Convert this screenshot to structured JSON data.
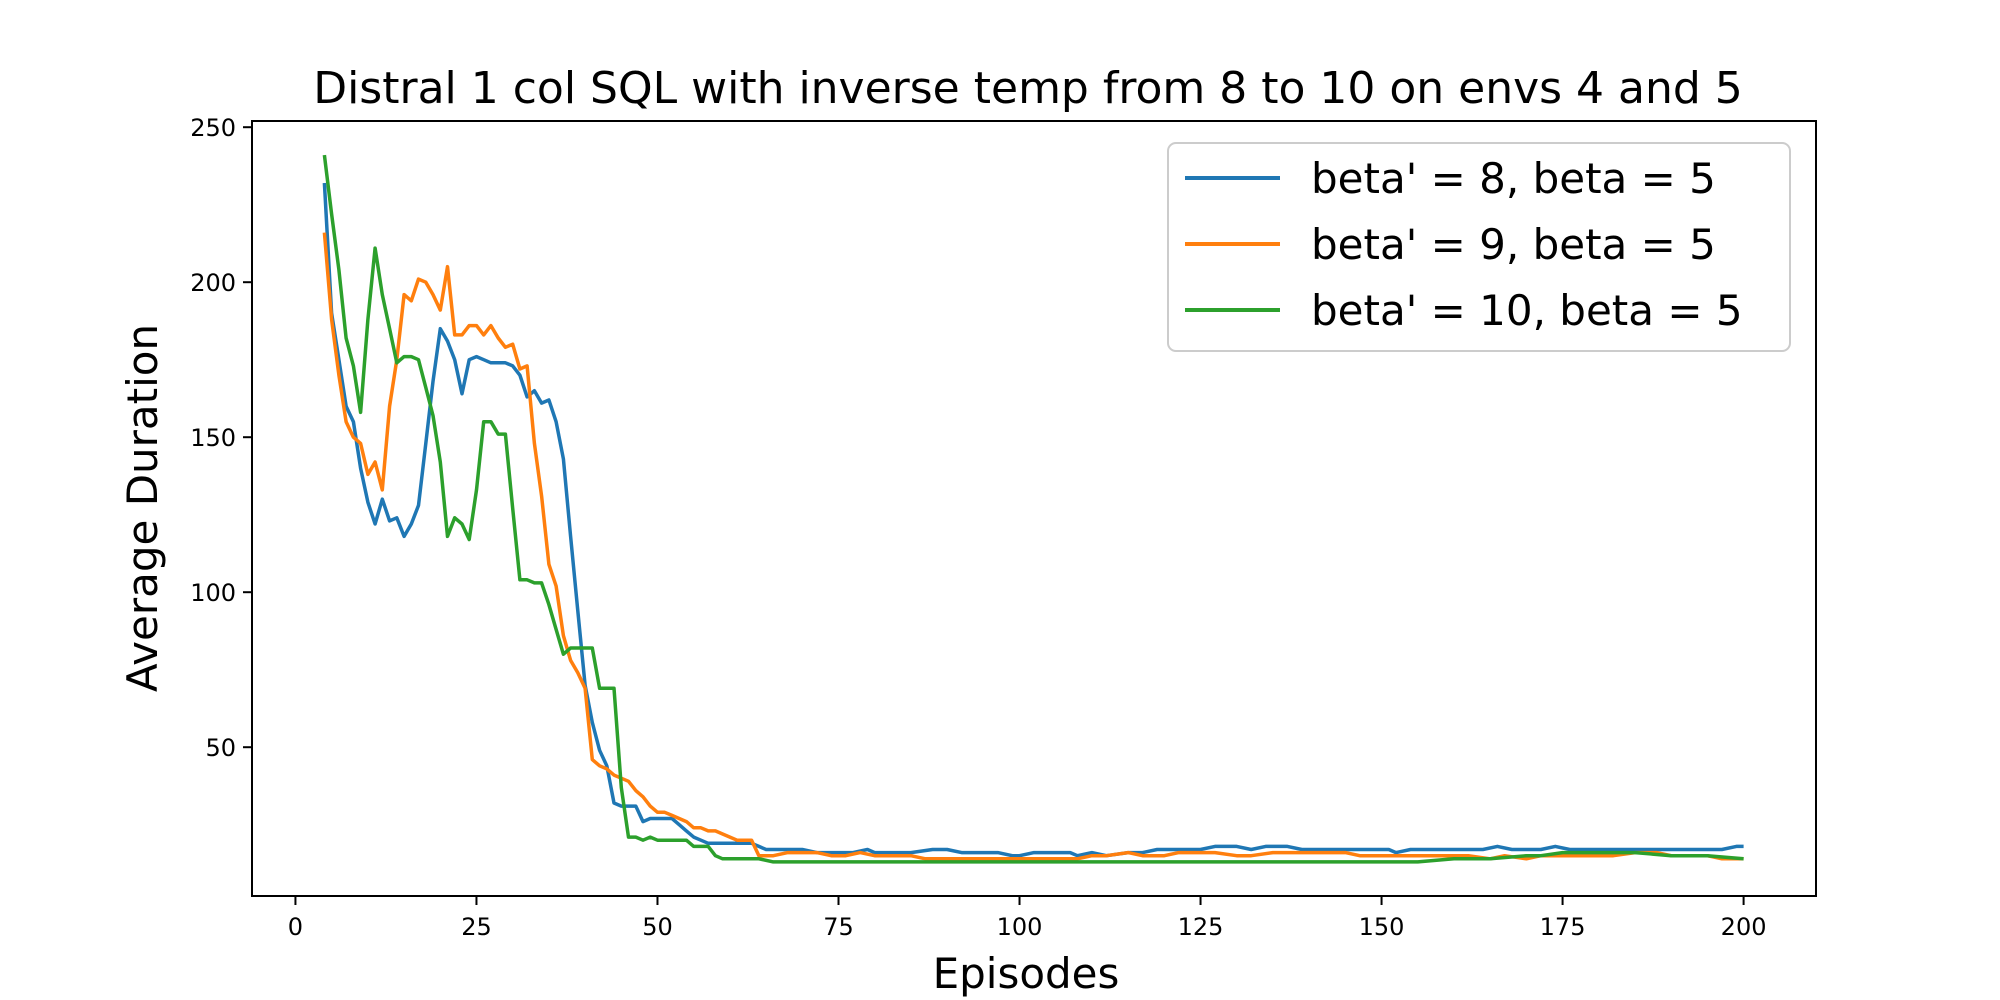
{
  "chart_data": {
    "type": "line",
    "title": "Distral 1 col SQL with inverse temp from 8 to 10 on envs 4 and 5",
    "xlabel": "Episodes",
    "ylabel": "Average Duration",
    "xlim": [
      -6,
      210
    ],
    "ylim": [
      2,
      252
    ],
    "xticks": [
      0,
      25,
      50,
      75,
      100,
      125,
      150,
      175,
      200
    ],
    "yticks": [
      50,
      100,
      150,
      200,
      250
    ],
    "grid": false,
    "legend_position": "top-right",
    "series": [
      {
        "name": "beta' = 8, beta = 5",
        "color": "#1f77b4",
        "points": [
          [
            4,
            232
          ],
          [
            5,
            190
          ],
          [
            6,
            175
          ],
          [
            7,
            160
          ],
          [
            8,
            155
          ],
          [
            9,
            140
          ],
          [
            10,
            129
          ],
          [
            11,
            122
          ],
          [
            12,
            130
          ],
          [
            13,
            123
          ],
          [
            14,
            124
          ],
          [
            15,
            118
          ],
          [
            16,
            122
          ],
          [
            17,
            128
          ],
          [
            18,
            148
          ],
          [
            19,
            168
          ],
          [
            20,
            185
          ],
          [
            21,
            181
          ],
          [
            22,
            175
          ],
          [
            23,
            164
          ],
          [
            24,
            175
          ],
          [
            25,
            176
          ],
          [
            26,
            175
          ],
          [
            27,
            174
          ],
          [
            28,
            174
          ],
          [
            29,
            174
          ],
          [
            30,
            173
          ],
          [
            31,
            170
          ],
          [
            32,
            163
          ],
          [
            33,
            165
          ],
          [
            34,
            161
          ],
          [
            35,
            162
          ],
          [
            36,
            155
          ],
          [
            37,
            143
          ],
          [
            38,
            118
          ],
          [
            39,
            94
          ],
          [
            40,
            70
          ],
          [
            41,
            58
          ],
          [
            42,
            49
          ],
          [
            43,
            44
          ],
          [
            44,
            32
          ],
          [
            45,
            31
          ],
          [
            46,
            31
          ],
          [
            47,
            31
          ],
          [
            48,
            26
          ],
          [
            49,
            27
          ],
          [
            50,
            27
          ],
          [
            51,
            27
          ],
          [
            52,
            27
          ],
          [
            53,
            25
          ],
          [
            54,
            23
          ],
          [
            55,
            21
          ],
          [
            56,
            20
          ],
          [
            57,
            19
          ],
          [
            58,
            19
          ],
          [
            59,
            19
          ],
          [
            60,
            19
          ],
          [
            61,
            19
          ],
          [
            62,
            19
          ],
          [
            63,
            19
          ],
          [
            64,
            18
          ],
          [
            65,
            17
          ],
          [
            66,
            17
          ],
          [
            67,
            17
          ],
          [
            68,
            17
          ],
          [
            70,
            17
          ],
          [
            72,
            16
          ],
          [
            75,
            16
          ],
          [
            77,
            16
          ],
          [
            79,
            17
          ],
          [
            80,
            16
          ],
          [
            82,
            16
          ],
          [
            85,
            16
          ],
          [
            88,
            17
          ],
          [
            90,
            17
          ],
          [
            92,
            16
          ],
          [
            95,
            16
          ],
          [
            97,
            16
          ],
          [
            99,
            15
          ],
          [
            100,
            15
          ],
          [
            102,
            16
          ],
          [
            105,
            16
          ],
          [
            107,
            16
          ],
          [
            108,
            15
          ],
          [
            110,
            16
          ],
          [
            112,
            15
          ],
          [
            115,
            16
          ],
          [
            117,
            16
          ],
          [
            119,
            17
          ],
          [
            120,
            17
          ],
          [
            122,
            17
          ],
          [
            125,
            17
          ],
          [
            127,
            18
          ],
          [
            129,
            18
          ],
          [
            130,
            18
          ],
          [
            132,
            17
          ],
          [
            134,
            18
          ],
          [
            136,
            18
          ],
          [
            137,
            18
          ],
          [
            139,
            17
          ],
          [
            140,
            17
          ],
          [
            142,
            17
          ],
          [
            145,
            17
          ],
          [
            147,
            17
          ],
          [
            149,
            17
          ],
          [
            151,
            17
          ],
          [
            152,
            16
          ],
          [
            154,
            17
          ],
          [
            157,
            17
          ],
          [
            160,
            17
          ],
          [
            162,
            17
          ],
          [
            164,
            17
          ],
          [
            166,
            18
          ],
          [
            168,
            17
          ],
          [
            170,
            17
          ],
          [
            172,
            17
          ],
          [
            174,
            18
          ],
          [
            176,
            17
          ],
          [
            178,
            17
          ],
          [
            180,
            17
          ],
          [
            182,
            17
          ],
          [
            185,
            17
          ],
          [
            187,
            17
          ],
          [
            190,
            17
          ],
          [
            192,
            17
          ],
          [
            195,
            17
          ],
          [
            197,
            17
          ],
          [
            199,
            18
          ],
          [
            200,
            18
          ]
        ]
      },
      {
        "name": "beta' = 9, beta = 5",
        "color": "#ff7f0e",
        "points": [
          [
            4,
            216
          ],
          [
            5,
            188
          ],
          [
            6,
            170
          ],
          [
            7,
            155
          ],
          [
            8,
            150
          ],
          [
            9,
            148
          ],
          [
            10,
            138
          ],
          [
            11,
            142
          ],
          [
            12,
            133
          ],
          [
            13,
            160
          ],
          [
            14,
            175
          ],
          [
            15,
            196
          ],
          [
            16,
            194
          ],
          [
            17,
            201
          ],
          [
            18,
            200
          ],
          [
            19,
            196
          ],
          [
            20,
            191
          ],
          [
            21,
            205
          ],
          [
            22,
            183
          ],
          [
            23,
            183
          ],
          [
            24,
            186
          ],
          [
            25,
            186
          ],
          [
            26,
            183
          ],
          [
            27,
            186
          ],
          [
            28,
            182
          ],
          [
            29,
            179
          ],
          [
            30,
            180
          ],
          [
            31,
            172
          ],
          [
            32,
            173
          ],
          [
            33,
            148
          ],
          [
            34,
            131
          ],
          [
            35,
            109
          ],
          [
            36,
            102
          ],
          [
            37,
            86
          ],
          [
            38,
            78
          ],
          [
            39,
            74
          ],
          [
            40,
            69
          ],
          [
            41,
            46
          ],
          [
            42,
            44
          ],
          [
            43,
            43
          ],
          [
            44,
            41
          ],
          [
            45,
            40
          ],
          [
            46,
            39
          ],
          [
            47,
            36
          ],
          [
            48,
            34
          ],
          [
            49,
            31
          ],
          [
            50,
            29
          ],
          [
            51,
            29
          ],
          [
            52,
            28
          ],
          [
            53,
            27
          ],
          [
            54,
            26
          ],
          [
            55,
            24
          ],
          [
            56,
            24
          ],
          [
            57,
            23
          ],
          [
            58,
            23
          ],
          [
            59,
            22
          ],
          [
            60,
            21
          ],
          [
            61,
            20
          ],
          [
            62,
            20
          ],
          [
            63,
            20
          ],
          [
            64,
            15
          ],
          [
            65,
            15
          ],
          [
            66,
            15
          ],
          [
            68,
            16
          ],
          [
            70,
            16
          ],
          [
            72,
            16
          ],
          [
            74,
            15
          ],
          [
            76,
            15
          ],
          [
            78,
            16
          ],
          [
            80,
            15
          ],
          [
            82,
            15
          ],
          [
            85,
            15
          ],
          [
            87,
            14
          ],
          [
            90,
            14
          ],
          [
            92,
            14
          ],
          [
            95,
            14
          ],
          [
            98,
            14
          ],
          [
            100,
            14
          ],
          [
            102,
            14
          ],
          [
            105,
            14
          ],
          [
            108,
            14
          ],
          [
            110,
            15
          ],
          [
            112,
            15
          ],
          [
            115,
            16
          ],
          [
            117,
            15
          ],
          [
            120,
            15
          ],
          [
            122,
            16
          ],
          [
            125,
            16
          ],
          [
            127,
            16
          ],
          [
            130,
            15
          ],
          [
            132,
            15
          ],
          [
            135,
            16
          ],
          [
            137,
            16
          ],
          [
            140,
            16
          ],
          [
            142,
            16
          ],
          [
            145,
            16
          ],
          [
            147,
            15
          ],
          [
            150,
            15
          ],
          [
            152,
            15
          ],
          [
            155,
            15
          ],
          [
            157,
            15
          ],
          [
            160,
            15
          ],
          [
            162,
            15
          ],
          [
            165,
            14
          ],
          [
            167,
            15
          ],
          [
            170,
            14
          ],
          [
            172,
            15
          ],
          [
            175,
            15
          ],
          [
            177,
            15
          ],
          [
            180,
            15
          ],
          [
            182,
            15
          ],
          [
            185,
            16
          ],
          [
            188,
            16
          ],
          [
            190,
            15
          ],
          [
            192,
            15
          ],
          [
            195,
            15
          ],
          [
            197,
            14
          ],
          [
            200,
            14
          ]
        ]
      },
      {
        "name": "beta' = 10, beta = 5",
        "color": "#2ca02c",
        "points": [
          [
            4,
            241
          ],
          [
            5,
            222
          ],
          [
            6,
            204
          ],
          [
            7,
            182
          ],
          [
            8,
            173
          ],
          [
            9,
            158
          ],
          [
            10,
            188
          ],
          [
            11,
            211
          ],
          [
            12,
            196
          ],
          [
            13,
            185
          ],
          [
            14,
            174
          ],
          [
            15,
            176
          ],
          [
            16,
            176
          ],
          [
            17,
            175
          ],
          [
            18,
            166
          ],
          [
            19,
            157
          ],
          [
            20,
            142
          ],
          [
            21,
            118
          ],
          [
            22,
            124
          ],
          [
            23,
            122
          ],
          [
            24,
            117
          ],
          [
            25,
            133
          ],
          [
            26,
            155
          ],
          [
            27,
            155
          ],
          [
            28,
            151
          ],
          [
            29,
            151
          ],
          [
            30,
            127
          ],
          [
            31,
            104
          ],
          [
            32,
            104
          ],
          [
            33,
            103
          ],
          [
            34,
            103
          ],
          [
            35,
            96
          ],
          [
            36,
            88
          ],
          [
            37,
            80
          ],
          [
            38,
            82
          ],
          [
            39,
            82
          ],
          [
            40,
            82
          ],
          [
            41,
            82
          ],
          [
            42,
            69
          ],
          [
            43,
            69
          ],
          [
            44,
            69
          ],
          [
            45,
            37
          ],
          [
            46,
            21
          ],
          [
            47,
            21
          ],
          [
            48,
            20
          ],
          [
            49,
            21
          ],
          [
            50,
            20
          ],
          [
            52,
            20
          ],
          [
            54,
            20
          ],
          [
            55,
            18
          ],
          [
            56,
            18
          ],
          [
            57,
            18
          ],
          [
            58,
            15
          ],
          [
            59,
            14
          ],
          [
            60,
            14
          ],
          [
            62,
            14
          ],
          [
            64,
            14
          ],
          [
            66,
            13
          ],
          [
            68,
            13
          ],
          [
            70,
            13
          ],
          [
            72,
            13
          ],
          [
            75,
            13
          ],
          [
            78,
            13
          ],
          [
            80,
            13
          ],
          [
            85,
            13
          ],
          [
            90,
            13
          ],
          [
            95,
            13
          ],
          [
            100,
            13
          ],
          [
            105,
            13
          ],
          [
            110,
            13
          ],
          [
            115,
            13
          ],
          [
            120,
            13
          ],
          [
            125,
            13
          ],
          [
            130,
            13
          ],
          [
            135,
            13
          ],
          [
            140,
            13
          ],
          [
            145,
            13
          ],
          [
            150,
            13
          ],
          [
            155,
            13
          ],
          [
            160,
            14
          ],
          [
            165,
            14
          ],
          [
            170,
            15
          ],
          [
            172,
            15
          ],
          [
            175,
            16
          ],
          [
            177,
            16
          ],
          [
            180,
            16
          ],
          [
            185,
            16
          ],
          [
            190,
            15
          ],
          [
            195,
            15
          ],
          [
            200,
            14
          ]
        ]
      }
    ]
  }
}
